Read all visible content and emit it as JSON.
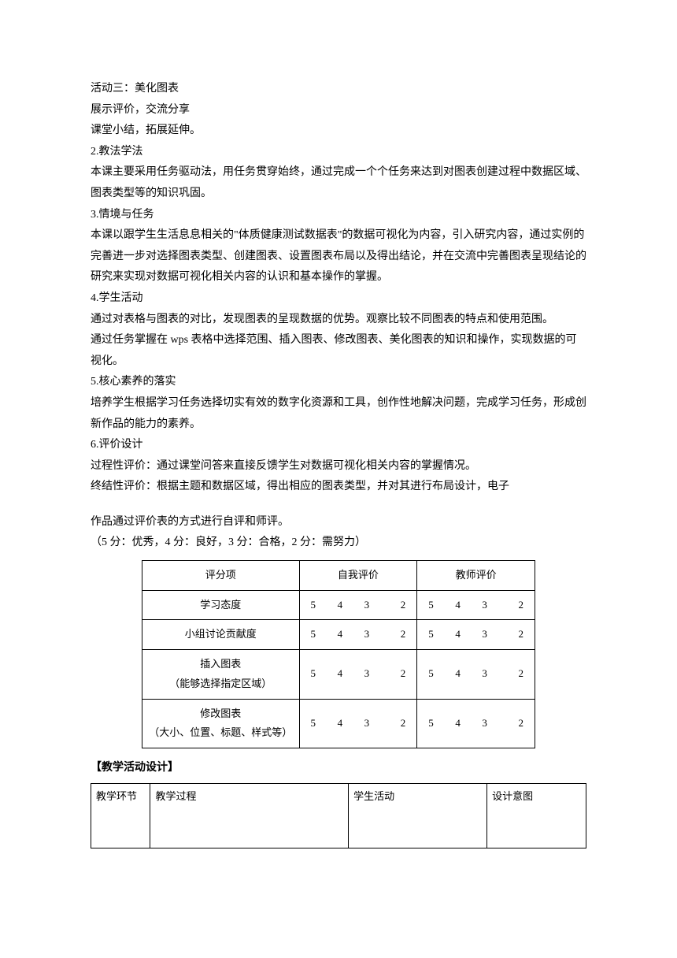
{
  "paragraphs": {
    "p1": "活动三：美化图表",
    "p2": "展示评价，交流分享",
    "p3": "课堂小结，拓展延伸。",
    "p4": "2.教法学法",
    "p5": "本课主要采用任务驱动法，用任务贯穿始终，通过完成一个个任务来达到对图表创建过程中数据区域、图表类型等的知识巩固。",
    "p6": "3.情境与任务",
    "p7": "本课以跟学生生活息息相关的\"体质健康测试数据表\"的数据可视化为内容，引入研究内容，通过实例的完善进一步对选择图表类型、创建图表、设置图表布局以及得出结论，并在交流中完善图表呈现结论的研究来实现对数据可视化相关内容的认识和基本操作的掌握。",
    "p8": "4.学生活动",
    "p9": "通过对表格与图表的对比，发现图表的呈现数据的优势。观察比较不同图表的特点和使用范围。",
    "p10": "通过任务掌握在 wps 表格中选择范围、插入图表、修改图表、美化图表的知识和操作，实现数据的可视化。",
    "p11": "5.核心素养的落实",
    "p12": "培养学生根据学习任务选择切实有效的数字化资源和工具，创作性地解决问题，完成学习任务，形成创新作品的能力的素养。",
    "p13": "6.评价设计",
    "p14": "过程性评价：通过课堂问答来直接反馈学生对数据可视化相关内容的掌握情况。",
    "p15": "终结性评价：根据主题和数据区域，得出相应的图表类型，并对其进行布局设计，电子",
    "p16": "作品通过评价表的方式进行自评和师评。",
    "p17": "（5 分：优秀，4 分：良好，3 分：合格，2 分：需努力）"
  },
  "rubric": {
    "headers": {
      "criterion": "评分项",
      "self": "自我评价",
      "teacher": "教师评价"
    },
    "criteria": {
      "c1": "学习态度",
      "c2": "小组讨论贡献度",
      "c3_line1": "插入图表",
      "c3_line2": "（能够选择指定区域）",
      "c4_line1": "修改图表",
      "c4_line2": "（大小、位置、标题、样式等）"
    },
    "scores": {
      "s5": "5",
      "s4": "4",
      "s3": "3",
      "s2": "2"
    }
  },
  "section_heading": "【教学活动设计】",
  "activity_headers": {
    "h1": "教学环节",
    "h2": "教学过程",
    "h3": "学生活动",
    "h4": "设计意图"
  }
}
